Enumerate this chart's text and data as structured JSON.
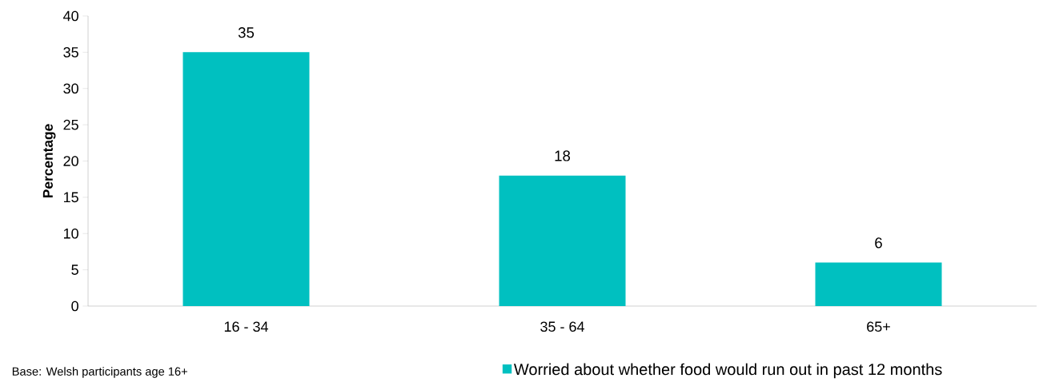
{
  "chart_data": {
    "type": "bar",
    "ylabel": "Percentage",
    "categories": [
      "16 - 34",
      "35 - 64",
      "65+"
    ],
    "series": [
      {
        "name": "Worried about whether food would run out in past 12 months",
        "color": "#00c0c0",
        "values": [
          35,
          18,
          6
        ]
      }
    ],
    "ylim": [
      0,
      40
    ],
    "yticks": [
      0,
      5,
      10,
      15,
      20,
      25,
      30,
      35,
      40
    ],
    "data_labels": true,
    "grid": false,
    "legend": "bottom",
    "annotations": [
      "Base: Welsh participants age 16+"
    ]
  }
}
